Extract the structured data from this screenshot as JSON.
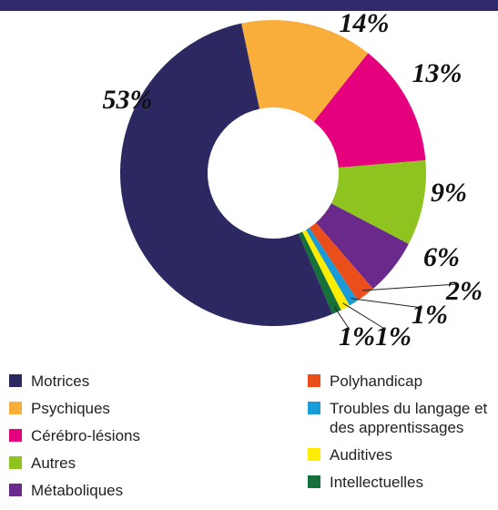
{
  "chart_data": {
    "type": "donut",
    "categories": [
      "Motrices",
      "Psychiques",
      "Cérébro-lésions",
      "Autres",
      "Métaboliques",
      "Polyhandicap",
      "Troubles du langage et des apprentissages",
      "Auditives",
      "Intellectuelles"
    ],
    "values": [
      53,
      14,
      13,
      9,
      6,
      2,
      1,
      1,
      1
    ],
    "value_labels": [
      "53%",
      "14%",
      "13%",
      "9%",
      "6%",
      "2%",
      "1%",
      "1%",
      "1%"
    ],
    "colors": [
      "#2b2862",
      "#f9ae3b",
      "#e5007e",
      "#8fc31f",
      "#6a2a8c",
      "#e94e1b",
      "#1a9ad6",
      "#ffed00",
      "#15703a"
    ]
  }
}
